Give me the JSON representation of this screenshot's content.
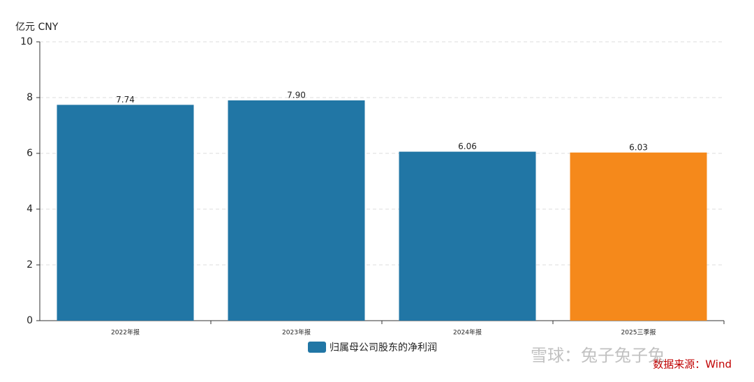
{
  "chart_data": {
    "type": "bar",
    "y_label": "亿元  CNY",
    "categories": [
      "2022年报",
      "2023年报",
      "2024年报",
      "2025三季报"
    ],
    "series": [
      {
        "name": "归属母公司股东的净利润",
        "color": "#2176a5",
        "colors": [
          "#2176a5",
          "#2176a5",
          "#2176a5",
          "#f5891b"
        ],
        "values": [
          7.74,
          7.9,
          6.06,
          6.03
        ],
        "value_labels": [
          "7.74",
          "7.90",
          "6.06",
          "6.03"
        ]
      }
    ],
    "ylim": [
      0,
      10
    ],
    "yticks": [
      0,
      2,
      4,
      6,
      8,
      10
    ],
    "grid": true,
    "source": "数据来源：Wind",
    "watermark": "雪球：兔子兔子兔"
  }
}
